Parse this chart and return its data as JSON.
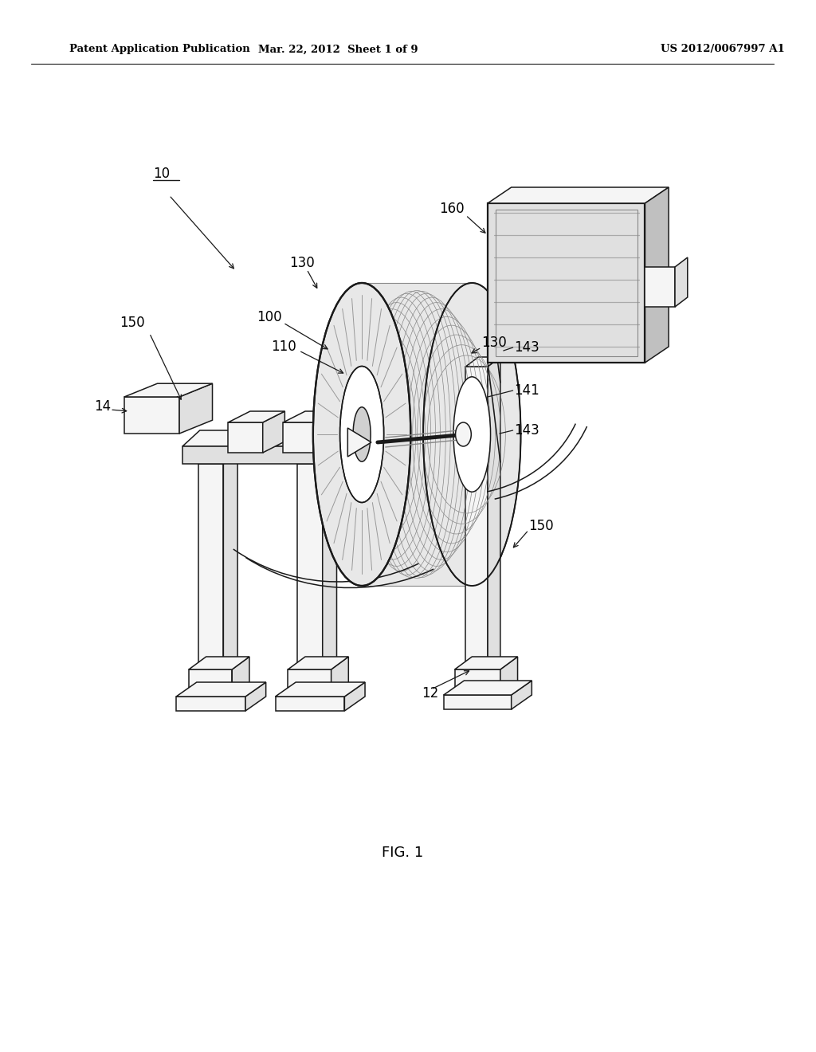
{
  "background_color": "#ffffff",
  "lc": "#1a1a1a",
  "fill_light": "#f5f5f5",
  "fill_mid": "#e0e0e0",
  "fill_dark": "#c0c0c0",
  "fill_spool": "#e8e8e8",
  "header_left": "Patent Application Publication",
  "header_mid": "Mar. 22, 2012  Sheet 1 of 9",
  "header_right": "US 2012/0067997 A1",
  "figure_label": "FIG. 1"
}
